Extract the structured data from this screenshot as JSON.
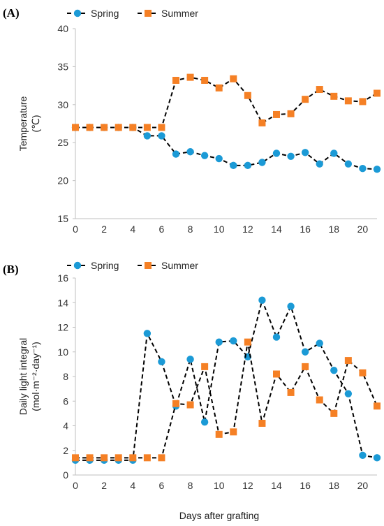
{
  "colors": {
    "spring": "#1b9ad6",
    "summer": "#f58025",
    "line": "#000000",
    "axis": "#bfbfbf"
  },
  "panel_a": {
    "label": "(A)"
  },
  "panel_b": {
    "label": "(B)"
  },
  "chart_data": [
    {
      "type": "line",
      "panel": "(A)",
      "title": "",
      "xlabel": "",
      "ylabel": "Temperature",
      "ylabel_unit": "(℃)",
      "ylim": [
        15,
        40
      ],
      "yticks": [
        15,
        20,
        25,
        30,
        35,
        40
      ],
      "xlim": [
        0,
        21
      ],
      "xticks": [
        0,
        2,
        4,
        6,
        8,
        10,
        12,
        14,
        16,
        18,
        20
      ],
      "legend": "top-left",
      "grid": false,
      "x": [
        0,
        1,
        2,
        3,
        4,
        5,
        6,
        7,
        8,
        9,
        10,
        11,
        12,
        13,
        14,
        15,
        16,
        17,
        18,
        19,
        20,
        21
      ],
      "series": [
        {
          "name": "Spring",
          "marker": "circle",
          "values": [
            27.0,
            27.0,
            27.0,
            27.0,
            27.0,
            25.9,
            25.9,
            23.5,
            23.8,
            23.3,
            22.9,
            22.0,
            22.0,
            22.4,
            23.6,
            23.2,
            23.7,
            22.2,
            23.6,
            22.2,
            21.6,
            21.5
          ]
        },
        {
          "name": "Summer",
          "marker": "square",
          "values": [
            27.0,
            27.0,
            27.0,
            27.0,
            27.0,
            27.0,
            27.0,
            33.2,
            33.6,
            33.2,
            32.2,
            33.4,
            31.2,
            27.6,
            28.7,
            28.8,
            30.7,
            32.0,
            31.1,
            30.5,
            30.4,
            31.5
          ]
        }
      ]
    },
    {
      "type": "line",
      "panel": "(B)",
      "title": "",
      "xlabel": "Days after grafting",
      "ylabel": "Daily light integral",
      "ylabel_unit": "(mol·m⁻²·day⁻¹)",
      "ylim": [
        0,
        16
      ],
      "yticks": [
        0,
        2,
        4,
        6,
        8,
        10,
        12,
        14,
        16
      ],
      "xlim": [
        0,
        21
      ],
      "xticks": [
        0,
        2,
        4,
        6,
        8,
        10,
        12,
        14,
        16,
        18,
        20
      ],
      "legend": "top-left",
      "grid": false,
      "x": [
        0,
        1,
        2,
        3,
        4,
        5,
        6,
        7,
        8,
        9,
        10,
        11,
        12,
        13,
        14,
        15,
        16,
        17,
        18,
        19,
        20,
        21
      ],
      "series": [
        {
          "name": "Spring",
          "marker": "circle",
          "values": [
            1.2,
            1.2,
            1.2,
            1.2,
            1.2,
            11.5,
            9.2,
            5.6,
            9.4,
            4.3,
            10.8,
            10.9,
            9.6,
            14.2,
            11.2,
            13.7,
            10.0,
            10.7,
            8.5,
            6.6,
            1.6,
            1.4
          ]
        },
        {
          "name": "Summer",
          "marker": "square",
          "values": [
            1.4,
            1.4,
            1.4,
            1.4,
            1.4,
            1.4,
            1.4,
            5.8,
            5.7,
            8.8,
            3.3,
            3.5,
            10.8,
            4.2,
            8.2,
            6.7,
            8.8,
            6.1,
            5.0,
            9.3,
            8.3,
            5.6
          ]
        }
      ]
    }
  ]
}
